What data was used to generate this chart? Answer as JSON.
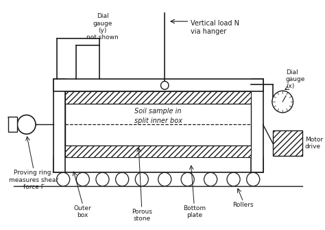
{
  "bg_color": "#ffffff",
  "line_color": "#1a1a1a",
  "text_color": "#1a1a1a",
  "annotations": {
    "dial_gauge_y": "Dial\ngauge\n(y)\nnot shown",
    "vertical_load": "Vertical load N\nvia hanger",
    "dial_gauge_x": "Dial\ngauge\n(x)",
    "motor_drive": "Motor\ndrive",
    "proving_ring": "Proving ring:\nmeasures shear\nforce F",
    "outer_box": "Outer\nbox",
    "porous_stone": "Porous\nstone",
    "bottom_plate": "Bottom\nplate",
    "rollers": "Rollers",
    "soil_sample_1": "Soil sample in",
    "soil_sample_2": "split inner box"
  }
}
